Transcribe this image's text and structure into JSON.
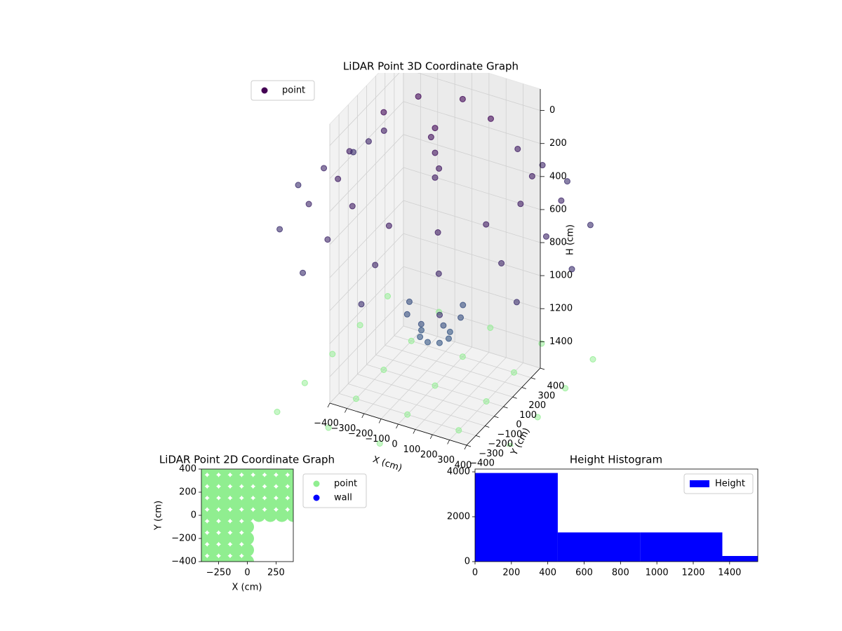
{
  "chart_data": [
    {
      "type": "scatter3d",
      "title": "LiDAR Point 3D Coordinate Graph",
      "xlabel": "X (cm)",
      "ylabel": "Y (cm)",
      "zlabel": "H (cm)",
      "xlim": [
        -400,
        400
      ],
      "ylim": [
        -400,
        400
      ],
      "zlim": [
        1560,
        -130
      ],
      "xticks": [
        {
          "value": -400,
          "label": "−400"
        },
        {
          "value": -300,
          "label": "−300"
        },
        {
          "value": -200,
          "label": "−200"
        },
        {
          "value": -100,
          "label": "−100"
        },
        0,
        100,
        200,
        300,
        400
      ],
      "yticks": [
        {
          "value": -400,
          "label": "−400"
        },
        {
          "value": -300,
          "label": "−300"
        },
        {
          "value": -200,
          "label": "−200"
        },
        {
          "value": -100,
          "label": "−100"
        },
        0,
        100,
        200,
        300,
        400
      ],
      "zticks": [
        0,
        200,
        400,
        600,
        800,
        1000,
        1200,
        1400
      ],
      "grid": true,
      "legend": "upper left",
      "series": [
        {
          "name": "point",
          "color": "#440154",
          "cmap": [
            "#440154",
            "#30688e"
          ],
          "x": [
            -433,
            -500,
            -433,
            -250,
            0,
            250,
            433,
            500,
            433,
            250,
            -563,
            -650,
            -563,
            -325,
            0,
            325,
            563,
            650,
            563,
            325,
            -693,
            -800,
            -693,
            -400,
            0,
            400,
            693,
            800,
            693,
            400,
            -150,
            -106,
            0,
            106,
            150,
            106,
            -80,
            -57,
            0,
            57,
            80,
            57,
            0,
            0,
            0,
            -50,
            50,
            -300,
            -212,
            0,
            212
          ],
          "y": [
            250,
            0,
            -250,
            -433,
            -500,
            -433,
            -250,
            0,
            250,
            433,
            325,
            0,
            -325,
            -563,
            -650,
            -563,
            -325,
            0,
            325,
            563,
            400,
            0,
            -400,
            -693,
            -800,
            -693,
            -400,
            0,
            400,
            693,
            0,
            -106,
            -150,
            -106,
            0,
            106,
            0,
            -57,
            -80,
            -57,
            0,
            57,
            0,
            0,
            0,
            50,
            -50,
            0,
            212,
            300,
            212
          ],
          "z": [
            300,
            300,
            300,
            300,
            300,
            300,
            300,
            300,
            300,
            300,
            450,
            450,
            450,
            450,
            450,
            450,
            450,
            450,
            450,
            450,
            600,
            600,
            600,
            600,
            600,
            600,
            600,
            600,
            600,
            600,
            1100,
            1100,
            1100,
            1100,
            1100,
            1100,
            1250,
            1250,
            1250,
            1250,
            1250,
            1250,
            0,
            150,
            300,
            100,
            200,
            0,
            0,
            0,
            0
          ]
        },
        {
          "color": "#90ee90",
          "x": [
            -600,
            -300,
            0,
            300,
            600,
            -600,
            -300,
            0,
            300,
            600,
            -600,
            -300,
            0,
            300,
            600,
            -600,
            -300,
            0,
            300,
            600,
            -600,
            -300,
            0,
            300,
            600
          ],
          "y": [
            -600,
            -600,
            -600,
            -600,
            -600,
            -300,
            -300,
            -300,
            -300,
            -300,
            0,
            0,
            0,
            0,
            0,
            300,
            300,
            300,
            300,
            300,
            600,
            600,
            600,
            600,
            600
          ],
          "z": [
            1560,
            1560,
            1560,
            1560,
            1560,
            1560,
            1560,
            1560,
            1560,
            1560,
            1560,
            1560,
            1560,
            1560,
            1560,
            1560,
            1560,
            1560,
            1560,
            1560,
            1560,
            1560,
            1560,
            1560,
            1560
          ]
        }
      ]
    },
    {
      "type": "scatter",
      "title": "LiDAR Point 2D Coordinate Graph",
      "xlabel": "X (cm)",
      "ylabel": "Y (cm)",
      "xlim": [
        -400,
        400
      ],
      "ylim": [
        -400,
        400
      ],
      "xticks": [
        {
          "value": -250,
          "label": "−250"
        },
        0,
        250
      ],
      "yticks": [
        {
          "value": -400,
          "label": "−400"
        },
        {
          "value": -200,
          "label": "−200"
        },
        0,
        200,
        400
      ],
      "legend": "outside right",
      "series": [
        {
          "name": "point",
          "color": "#90ee90",
          "x": [
            -400,
            -300,
            -200,
            -100,
            0,
            100,
            200,
            300,
            400,
            -400,
            -300,
            -200,
            -100,
            0,
            100,
            200,
            300,
            400,
            -400,
            -300,
            -200,
            -100,
            0,
            100,
            200,
            300,
            400,
            -400,
            -300,
            -200,
            -100,
            0,
            100,
            200,
            300,
            400,
            -400,
            -300,
            -200,
            -100,
            0,
            100,
            200,
            300,
            400,
            -400,
            -300,
            -200,
            -100,
            0,
            -400,
            -300,
            -200,
            -100,
            0,
            -400,
            -300,
            -200,
            -100,
            0,
            -400,
            -300,
            -200,
            -100,
            0
          ],
          "y": [
            400,
            400,
            400,
            400,
            400,
            400,
            400,
            400,
            400,
            300,
            300,
            300,
            300,
            300,
            300,
            300,
            300,
            300,
            200,
            200,
            200,
            200,
            200,
            200,
            200,
            200,
            200,
            100,
            100,
            100,
            100,
            100,
            100,
            100,
            100,
            100,
            0,
            0,
            0,
            0,
            0,
            0,
            0,
            0,
            0,
            -100,
            -100,
            -100,
            -100,
            -100,
            -200,
            -200,
            -200,
            -200,
            -200,
            -300,
            -300,
            -300,
            -300,
            -300,
            -400,
            -400,
            -400,
            -400,
            -400
          ]
        },
        {
          "name": "wall",
          "color": "#0000ff",
          "x": [],
          "y": []
        }
      ]
    },
    {
      "type": "histogram",
      "title": "Height Histogram",
      "name": "Height",
      "color": "#0000ff",
      "bins": [
        0,
        455,
        910,
        1360,
        1555
      ],
      "counts": [
        3950,
        1300,
        1300,
        250
      ],
      "xlim": [
        0,
        1555
      ],
      "ylim": [
        0,
        4125
      ],
      "xticks": [
        0,
        200,
        400,
        600,
        800,
        1000,
        1200,
        1400
      ],
      "yticks": [
        0,
        2000,
        4000
      ],
      "legend": "upper right"
    }
  ]
}
